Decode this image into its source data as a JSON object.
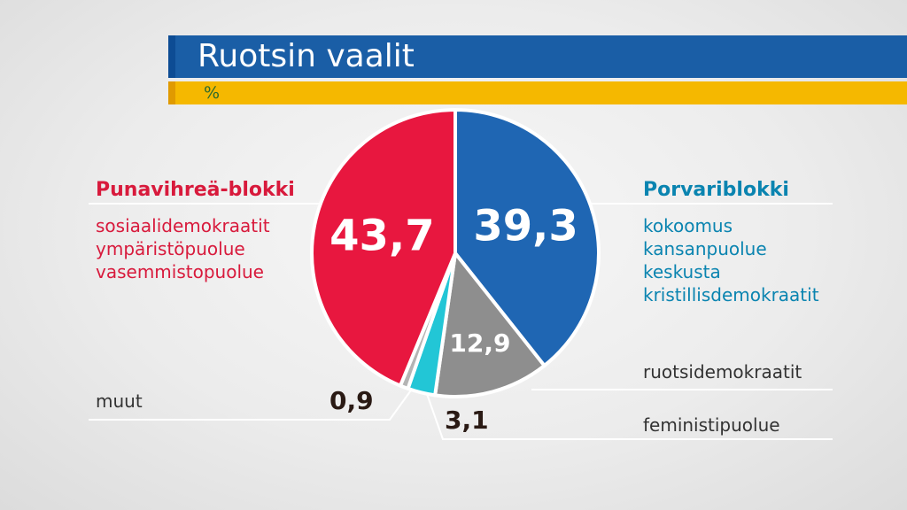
{
  "header": {
    "title": "Ruotsin vaalit",
    "unit": "%"
  },
  "left_block": {
    "title": "Punavihreä-blokki",
    "parties": [
      "sosiaalidemokraatit",
      "ympäristöpuolue",
      "vasemmistopuolue"
    ]
  },
  "right_block": {
    "title": "Porvariblokki",
    "parties": [
      "kokoomus",
      "kansanpuolue",
      "keskusta",
      "kristillisdemokraatit"
    ]
  },
  "labels": {
    "ruotsidemokraatit": "ruotsidemokraatit",
    "feministipuolue": "feministipuolue",
    "muut": "muut"
  },
  "chart_data": {
    "type": "pie",
    "title": "Ruotsin vaalit",
    "unit": "%",
    "slices": [
      {
        "name": "Porvariblokki",
        "value": 39.3,
        "label": "39,3",
        "color": "#1f66b3"
      },
      {
        "name": "ruotsidemokraatit",
        "value": 12.9,
        "label": "12,9",
        "color": "#8e8e8e"
      },
      {
        "name": "feministipuolue",
        "value": 3.1,
        "label": "3,1",
        "color": "#22c6d6"
      },
      {
        "name": "muut",
        "value": 0.9,
        "label": "0,9",
        "color": "#b4b4b4"
      },
      {
        "name": "Punavihreä-blokki",
        "value": 43.7,
        "label": "43,7",
        "color": "#e8173f"
      }
    ]
  }
}
